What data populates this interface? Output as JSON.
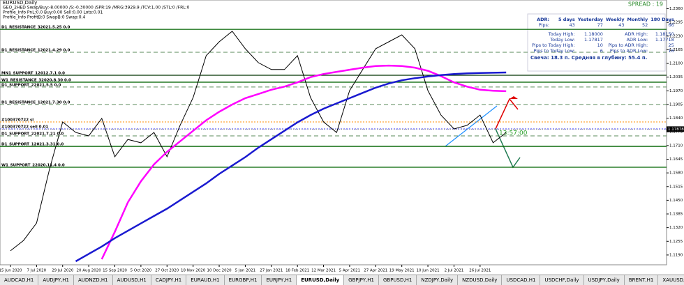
{
  "chart_data": {
    "type": "line",
    "title": "EURUSD,Daily",
    "indicator_lines": [
      "GEO_2HED Swap/Buy:-8.00000 /S:-0.30000 /SPR:19 /MRG:3929.9 /TCV:1.00 /STL:0 /FRL:0",
      "Profile_Info PnL:0.0 Buy:0.00 Sell:0.00 Lots:0.01",
      "Profile_Info ProfitB:0 SwapB:0 Swap:0.4"
    ],
    "spread_label": "SPREAD : 19",
    "time_label": "13:57:00",
    "categories": [
      "15 Jun 2020",
      null,
      "7 Jul 2020",
      null,
      "29 Jul 2020",
      null,
      "20 Aug 2020",
      null,
      "15 Sep 2020",
      null,
      "5 Oct 2020",
      null,
      "27 Oct 2020",
      null,
      "18 Nov 2020",
      null,
      "10 Dec 2020",
      null,
      "5 Jan 2021",
      null,
      "27 Jan 2021",
      null,
      "18 Feb 2021",
      null,
      "12 Mar 2021",
      null,
      "5 Apr 2021",
      null,
      "27 Apr 2021",
      null,
      "19 May 2021",
      null,
      "10 Jun 2021",
      null,
      "2 Jul 2021",
      null,
      "26 Jul 2021",
      null,
      null
    ],
    "series": [
      {
        "name": "EURUSD",
        "color": "#000000",
        "values": [
          1.121,
          1.1259,
          1.1342,
          1.16,
          1.1822,
          1.1772,
          1.1756,
          1.1839,
          1.1657,
          1.1739,
          1.1723,
          1.1772,
          1.1657,
          1.1806,
          1.1938,
          1.2137,
          1.2203,
          1.2253,
          1.217,
          1.2104,
          1.2071,
          1.2071,
          1.2137,
          1.1938,
          1.1822,
          1.1772,
          1.1971,
          1.2071,
          1.217,
          1.2203,
          1.2236,
          1.217,
          1.1971,
          1.1855,
          1.1789,
          1.1806,
          1.1855,
          1.1723,
          1.1772
        ]
      },
      {
        "name": "MA slow",
        "color": "#ff00ff",
        "values": [
          null,
          null,
          null,
          null,
          null,
          null,
          null,
          1.117,
          1.13,
          1.144,
          1.154,
          1.162,
          1.168,
          1.173,
          1.178,
          1.183,
          1.187,
          1.1905,
          1.1935,
          1.1955,
          1.1975,
          1.199,
          1.201,
          1.2035,
          1.205,
          1.206,
          1.207,
          1.208,
          1.2088,
          1.209,
          1.2088,
          1.208,
          1.2065,
          1.204,
          1.201,
          1.199,
          1.1975,
          1.197,
          1.1968
        ]
      },
      {
        "name": "MA 200",
        "color": "#1a1ad0",
        "values": [
          null,
          null,
          null,
          null,
          null,
          1.116,
          1.1195,
          1.123,
          1.127,
          1.1305,
          1.134,
          1.1375,
          1.141,
          1.145,
          1.149,
          1.153,
          1.1575,
          1.1615,
          1.1655,
          1.17,
          1.174,
          1.178,
          1.182,
          1.1855,
          1.1885,
          1.191,
          1.1935,
          1.196,
          1.1985,
          1.2005,
          1.202,
          1.203,
          1.2038,
          1.2045,
          1.205,
          1.2053,
          1.2055,
          1.2056,
          1.2057
        ]
      }
    ],
    "levels": [
      {
        "label": "D1_RESISTANCE_32021.5.25 0.0",
        "price": 1.2262,
        "color": "#006400",
        "style": "solid"
      },
      {
        "label": "D1_RESISTANCE_12021.4.29 0.0",
        "price": 1.2153,
        "color": "#5a8a5a",
        "style": "dashed"
      },
      {
        "label": "MN1_SUPPORT_12012.7.1 0.0",
        "price": 1.2044,
        "color": "#003300",
        "style": "solid"
      },
      {
        "label": "W1_RESISTANCE_32020.8.30 0.0",
        "price": 1.2011,
        "color": "#006400",
        "style": "solid"
      },
      {
        "label": "D1_SUPPORT_22021.5.5 0.0",
        "price": 1.1988,
        "color": "#5a8a5a",
        "style": "dashed"
      },
      {
        "label": "D1_RESISTANCE_12021.7.30 0.0",
        "price": 1.1905,
        "color": "#5a8a5a",
        "style": "dashed"
      },
      {
        "label": "#100370722 sl",
        "price": 1.1822,
        "color": "#ff8c00",
        "style": "dotted"
      },
      {
        "label": "#100370722 sell 0.01",
        "price": 1.1789,
        "color": "#3030ff",
        "style": "dotted"
      },
      {
        "label": "D1_SUPPORT_22021.7.21 0.0",
        "price": 1.1756,
        "color": "#5a8a5a",
        "style": "dashed"
      },
      {
        "label": "D1_SUPPORT_12021.3.31 0.0",
        "price": 1.1706,
        "color": "#006400",
        "style": "solid"
      },
      {
        "label": "W1_SUPPORT_22020.11.4 0.0",
        "price": 1.1607,
        "color": "#006400",
        "style": "solid"
      }
    ],
    "current_price": 1.17878,
    "ylim": [
      1.115,
      1.2375
    ],
    "yticks": [
      {
        "value": 1.119,
        "label": "1.1190"
      },
      {
        "value": 1.1255,
        "label": "1.1255"
      },
      {
        "value": 1.132,
        "label": "1.1320"
      },
      {
        "value": 1.1385,
        "label": "1.1385"
      },
      {
        "value": 1.145,
        "label": "1.1450"
      },
      {
        "value": 1.1515,
        "label": "1.1515"
      },
      {
        "value": 1.158,
        "label": "1.1580"
      },
      {
        "value": 1.1645,
        "label": "1.1645"
      },
      {
        "value": 1.171,
        "label": "1.1710"
      },
      {
        "value": 1.1775,
        "label": "1.1775"
      },
      {
        "value": 1.184,
        "label": "1.1840"
      },
      {
        "value": 1.1905,
        "label": "1.1905"
      },
      {
        "value": 1.197,
        "label": "1.1970"
      },
      {
        "value": 1.2035,
        "label": "1.2035"
      },
      {
        "value": 1.21,
        "label": "1.2100"
      },
      {
        "value": 1.2165,
        "label": "1.2165"
      },
      {
        "value": 1.223,
        "label": "1.2230"
      },
      {
        "value": 1.2295,
        "label": "1.2295"
      },
      {
        "value": 1.236,
        "label": "1.2360"
      }
    ],
    "grid": false
  },
  "info_panel": {
    "header": [
      "ADR:",
      "5 days",
      "Yesterday",
      "Weekly",
      "Monthly",
      "180 Days"
    ],
    "pips": [
      "Pips:",
      "43",
      "77",
      "43",
      "52",
      "66"
    ],
    "rows": [
      [
        "Today High:",
        "1.18000",
        "ADR High:",
        "1.18150"
      ],
      [
        "Today Low:",
        "1.17817",
        "ADR Low:",
        "1.17718"
      ],
      [
        "Pips to Today High:",
        "10",
        "Pips to ADR High:",
        "25"
      ],
      [
        "Pips to Today Low:",
        "6",
        "Pips to ADR Low:",
        "16"
      ]
    ],
    "summary": "Свеча: 18.3 п. Средняя в глубину: 55.4 п."
  },
  "tabs": [
    "AUDCAD,H1",
    "AUDJPY,H1",
    "AUDNZD,H1",
    "AUDUSD,H1",
    "CADJPY,H1",
    "EURAUD,H1",
    "EURGBP,H1",
    "EURJPY,H1",
    "EURUSD,Daily",
    "GBPJPY,H1",
    "GBPUSD,H1",
    "NZDJPY,Daily",
    "NZDUSD,Daily",
    "USDCAD,H1",
    "USDCHF,Daily",
    "USDJPY,Daily",
    "BRENT,H1",
    "XAUUSD,H1",
    "USDRUB,H1"
  ],
  "active_tab": 8
}
